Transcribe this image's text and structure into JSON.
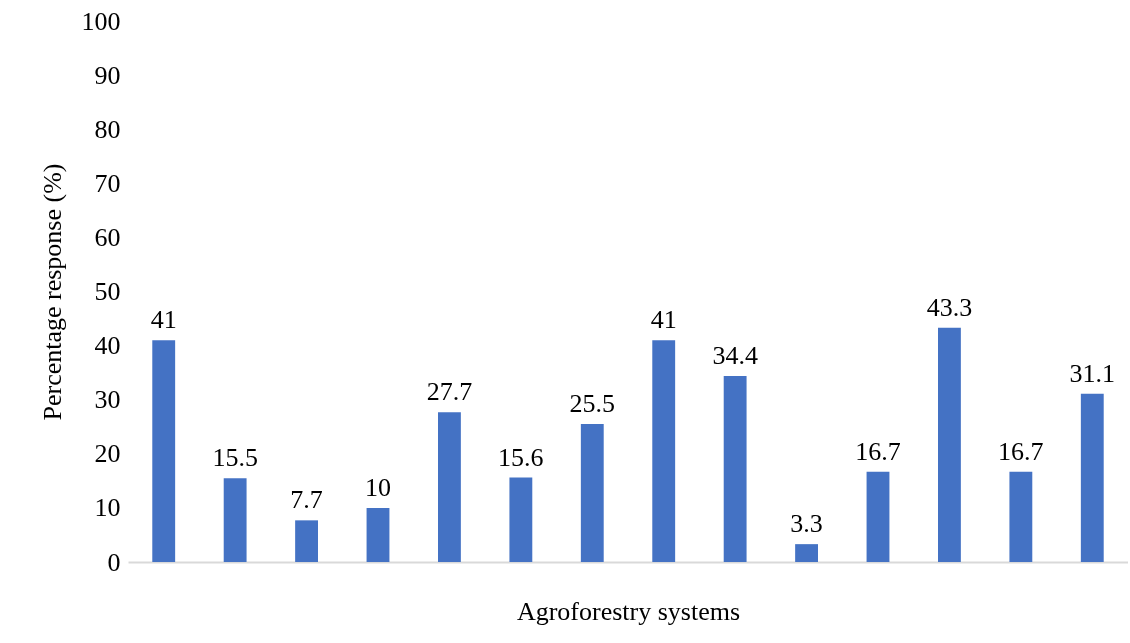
{
  "chart_data": {
    "type": "bar",
    "xlabel": "Agroforestry systems",
    "ylabel": "Percentage response (%)",
    "categories": [
      null,
      null,
      null,
      null,
      null,
      null,
      null,
      null,
      null,
      null,
      null,
      null,
      null,
      null
    ],
    "values": [
      41,
      15.5,
      7.7,
      10,
      27.7,
      15.6,
      25.5,
      41,
      34.4,
      3.3,
      16.7,
      43.3,
      16.7,
      31.1
    ],
    "color": "#4472c4",
    "ylim": [
      0,
      100
    ],
    "yticks": [
      0,
      10,
      20,
      30,
      40,
      50,
      60,
      70,
      80,
      90,
      100
    ],
    "data_labels": true,
    "grid": false,
    "tick_labels": "y"
  }
}
